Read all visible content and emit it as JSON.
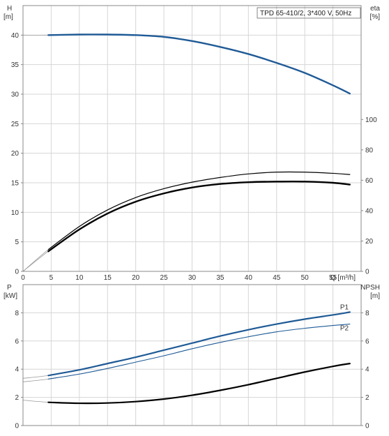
{
  "title": "TPD 65-410/2, 3*400 V, 50Hz",
  "chart_data": [
    {
      "type": "line",
      "panel": "top",
      "left_axis_label": [
        "H",
        "[m]"
      ],
      "right_axis_label": [
        "eta",
        "[%]"
      ],
      "xlabel": "Q [m³/h]",
      "xlim": [
        0,
        60
      ],
      "xticks": [
        0,
        5,
        10,
        15,
        20,
        25,
        30,
        35,
        40,
        45,
        50,
        55
      ],
      "ylim_left": [
        0,
        45
      ],
      "yticks_left": [
        0,
        5,
        10,
        15,
        20,
        25,
        30,
        35,
        40
      ],
      "ylim_right": [
        0,
        175
      ],
      "yticks_right": [
        0,
        20,
        40,
        60,
        80,
        100
      ],
      "grid": true,
      "series": [
        {
          "axis": "left",
          "color": "#1f5a96",
          "width": 2.4,
          "extension": true,
          "x": [
            0,
            4.5,
            10,
            15,
            20,
            25,
            30,
            35,
            40,
            45,
            50,
            55,
            58
          ],
          "y": [
            40.0,
            40.0,
            40.1,
            40.1,
            40.0,
            39.7,
            39.0,
            38.0,
            36.8,
            35.3,
            33.6,
            31.5,
            30.1
          ]
        },
        {
          "axis": "left",
          "color": "#000000",
          "width": 1.2,
          "extension": true,
          "x": [
            0,
            4.5,
            10,
            15,
            20,
            25,
            30,
            35,
            40,
            45,
            50,
            55,
            58
          ],
          "y": [
            0,
            3.7,
            7.6,
            10.4,
            12.5,
            14.0,
            15.1,
            15.9,
            16.5,
            16.8,
            16.8,
            16.6,
            16.4
          ]
        },
        {
          "axis": "left",
          "color": "#000000",
          "width": 2.4,
          "extension": true,
          "x": [
            0,
            4.5,
            10,
            15,
            20,
            25,
            30,
            35,
            40,
            45,
            50,
            55,
            58
          ],
          "y": [
            0,
            3.4,
            7.1,
            9.8,
            11.8,
            13.2,
            14.2,
            14.8,
            15.1,
            15.2,
            15.2,
            15.0,
            14.7
          ]
        }
      ]
    },
    {
      "type": "line",
      "panel": "bottom",
      "left_axis_label": [
        "P",
        "[kW]"
      ],
      "right_axis_label": [
        "NPSH",
        "[m]"
      ],
      "xlim": [
        0,
        60
      ],
      "ylim_left": [
        0,
        10
      ],
      "yticks_left": [
        0,
        2,
        4,
        6,
        8
      ],
      "ylim_right": [
        0,
        10
      ],
      "yticks_right": [
        0,
        2,
        4,
        6,
        8
      ],
      "grid": true,
      "series": [
        {
          "name": "P1",
          "axis": "left",
          "color": "#1f5a96",
          "width": 2.2,
          "extension": true,
          "x": [
            0,
            4.5,
            10,
            15,
            20,
            25,
            30,
            35,
            40,
            45,
            50,
            55,
            58
          ],
          "y": [
            3.35,
            3.55,
            3.95,
            4.4,
            4.85,
            5.35,
            5.85,
            6.35,
            6.8,
            7.2,
            7.55,
            7.85,
            8.05
          ]
        },
        {
          "name": "P2",
          "axis": "left",
          "color": "#1f5a96",
          "width": 1.1,
          "extension": true,
          "x": [
            0,
            4.5,
            10,
            15,
            20,
            25,
            30,
            35,
            40,
            45,
            50,
            55,
            58
          ],
          "y": [
            3.1,
            3.3,
            3.65,
            4.05,
            4.5,
            4.95,
            5.45,
            5.9,
            6.3,
            6.65,
            6.9,
            7.1,
            7.2
          ]
        },
        {
          "axis": "right",
          "color": "#000000",
          "width": 2.2,
          "extension": true,
          "x": [
            0,
            4.5,
            10,
            15,
            20,
            25,
            30,
            35,
            40,
            45,
            50,
            55,
            58
          ],
          "y": [
            1.8,
            1.65,
            1.58,
            1.6,
            1.7,
            1.88,
            2.15,
            2.5,
            2.9,
            3.35,
            3.8,
            4.2,
            4.4
          ]
        }
      ]
    }
  ]
}
